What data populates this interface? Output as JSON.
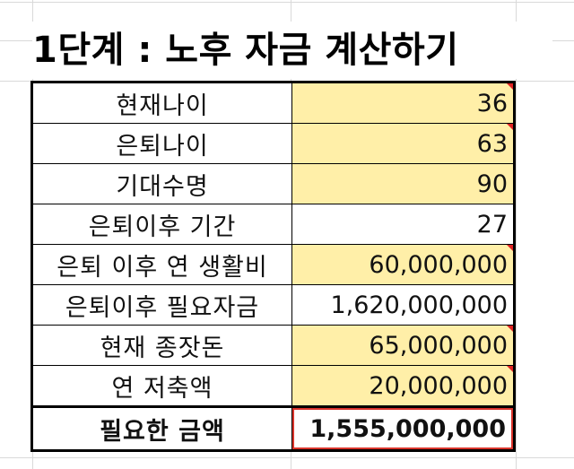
{
  "sheet": {
    "title": "1단계 : 노후 자금 계산하기",
    "colors": {
      "input_fill": "#ffefa8",
      "note_marker": "#e02424",
      "selected_cell_border": "#d9342b"
    },
    "rows": [
      {
        "label": "현재나이",
        "value": "36",
        "input": true,
        "note": true
      },
      {
        "label": "은퇴나이",
        "value": "63",
        "input": true,
        "note": true
      },
      {
        "label": "기대수명",
        "value": "90",
        "input": true,
        "note": false
      },
      {
        "label": "은퇴이후 기간",
        "value": "27",
        "input": false,
        "note": false
      },
      {
        "label": "은퇴 이후 연 생활비",
        "value": "60,000,000",
        "input": true,
        "note": true
      },
      {
        "label": "은퇴이후 필요자금",
        "value": "1,620,000,000",
        "input": false,
        "note": false
      },
      {
        "label": "현재 종잣돈",
        "value": "65,000,000",
        "input": true,
        "note": true
      },
      {
        "label": "연 저축액",
        "value": "20,000,000",
        "input": true,
        "note": true
      },
      {
        "label": "필요한 금액",
        "value": "1,555,000,000",
        "input": false,
        "note": false,
        "total": true
      }
    ]
  }
}
